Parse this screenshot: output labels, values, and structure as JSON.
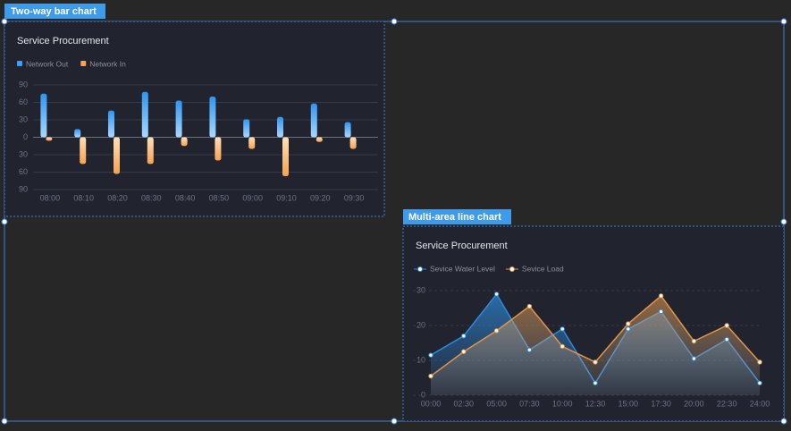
{
  "labels": [
    "Two-way bar chart",
    "Multi-area line chart"
  ],
  "chart_data": [
    {
      "type": "bar",
      "title": "Service Procurement",
      "categories": [
        "08:00",
        "08:10",
        "08:20",
        "08:30",
        "08:40",
        "08:50",
        "09:00",
        "09:10",
        "09:20",
        "09:30"
      ],
      "series": [
        {
          "name": "Network Out",
          "color": "#3ba0f5",
          "values": [
            75,
            14,
            46,
            78,
            63,
            70,
            31,
            35,
            58,
            26
          ]
        },
        {
          "name": "Network In",
          "color": "#f5a45a",
          "values": [
            -6,
            -46,
            -63,
            -46,
            -15,
            -40,
            -20,
            -67,
            -8,
            -20
          ]
        }
      ],
      "ylim": [
        -90,
        90
      ],
      "yticks": [
        {
          "value": -90,
          "label": "90"
        },
        {
          "value": -60,
          "label": "60"
        },
        {
          "value": -30,
          "label": "30"
        },
        0,
        30,
        60,
        90
      ],
      "grid": true
    },
    {
      "type": "line",
      "title": "Service Procurement",
      "categories": [
        "00:00",
        "02:30",
        "05:00",
        "07:30",
        "10:00",
        "12:30",
        "15:00",
        "17:30",
        "20:00",
        "22:30",
        "24:00"
      ],
      "series": [
        {
          "name": "Sevice Water Level",
          "color": "#2e8bdb",
          "values": [
            11.5,
            17,
            29,
            13,
            19,
            3.5,
            19,
            24,
            10.5,
            16,
            3.5
          ]
        },
        {
          "name": "Sevice Load",
          "color": "#e0954a",
          "values": [
            5.5,
            12.5,
            18.5,
            25.5,
            14,
            9.5,
            20.5,
            28.5,
            15.5,
            20,
            9.5
          ]
        }
      ],
      "ylim": [
        0,
        30
      ],
      "yticks": [
        0,
        10,
        20,
        30
      ],
      "grid": true
    }
  ]
}
